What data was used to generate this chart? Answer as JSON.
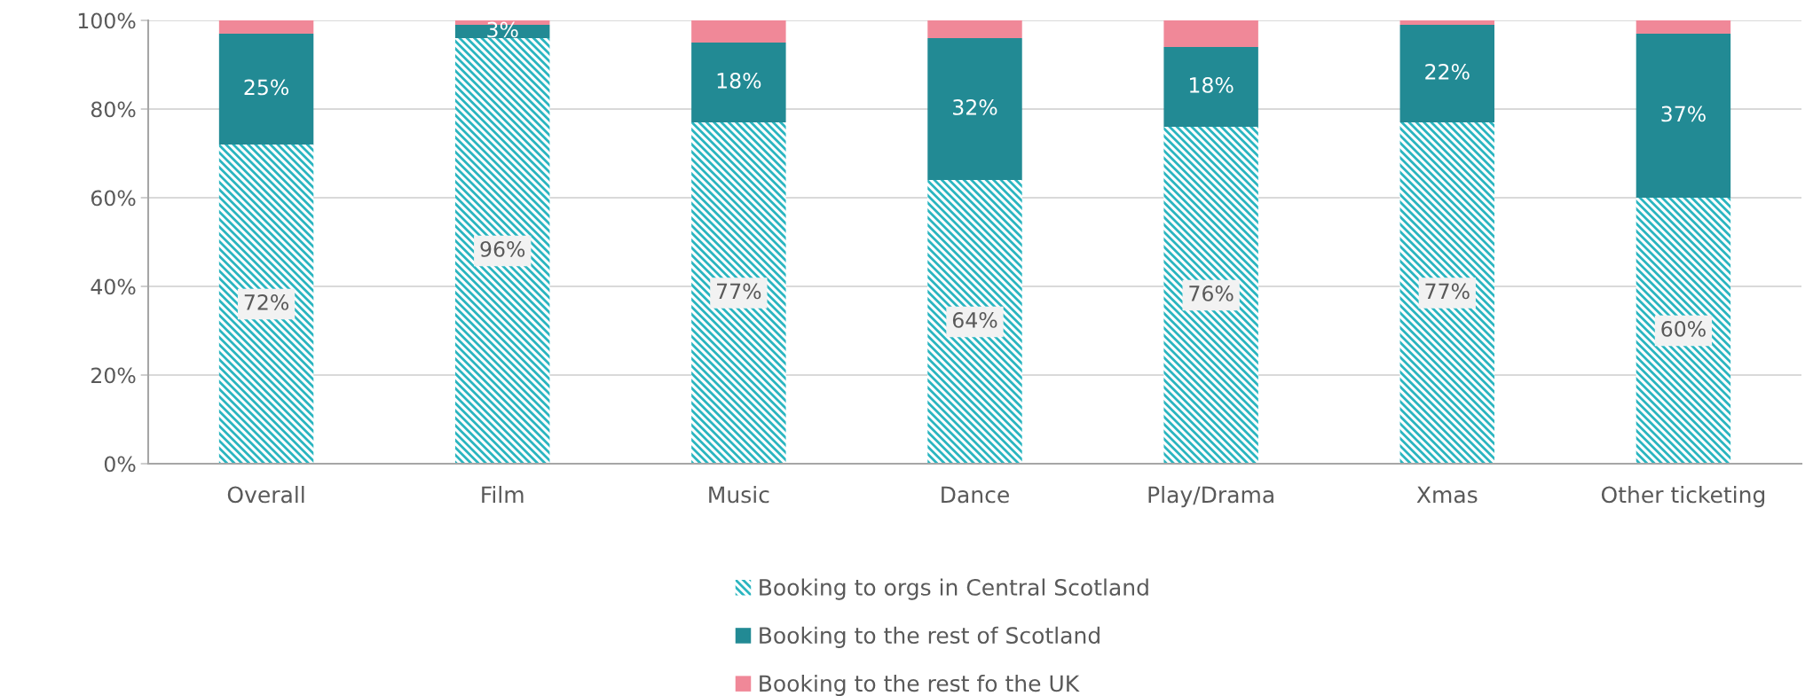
{
  "chart_data": {
    "type": "bar",
    "stacked": true,
    "categories": [
      "Overall",
      "Film",
      "Music",
      "Dance",
      "Play/Drama",
      "Xmas",
      "Other ticketing"
    ],
    "series": [
      {
        "name": "Booking to orgs in Central Scotland",
        "color": "#2ab5c0",
        "values": [
          72,
          96,
          77,
          64,
          76,
          77,
          60
        ],
        "value_labels": [
          "72%",
          "96%",
          "77%",
          "64%",
          "76%",
          "77%",
          "60%"
        ]
      },
      {
        "name": "Booking to the rest of Scotland",
        "color": "#228a94",
        "values": [
          25,
          3,
          18,
          32,
          18,
          22,
          37
        ],
        "value_labels": [
          "25%",
          "3%",
          "18%",
          "32%",
          "18%",
          "22%",
          "37%"
        ]
      },
      {
        "name": "Booking to the rest fo the UK",
        "color": "#f08898",
        "values": [
          3,
          1,
          5,
          4,
          6,
          1,
          3
        ]
      }
    ],
    "ylim": [
      0,
      100
    ],
    "yticks": [
      {
        "value": 0,
        "label": "0%"
      },
      {
        "value": 20,
        "label": "20%"
      },
      {
        "value": 40,
        "label": "40%"
      },
      {
        "value": 60,
        "label": "60%"
      },
      {
        "value": 80,
        "label": "80%"
      },
      {
        "value": 100,
        "label": "100%"
      }
    ],
    "grid": "y",
    "legend": "bottom"
  }
}
